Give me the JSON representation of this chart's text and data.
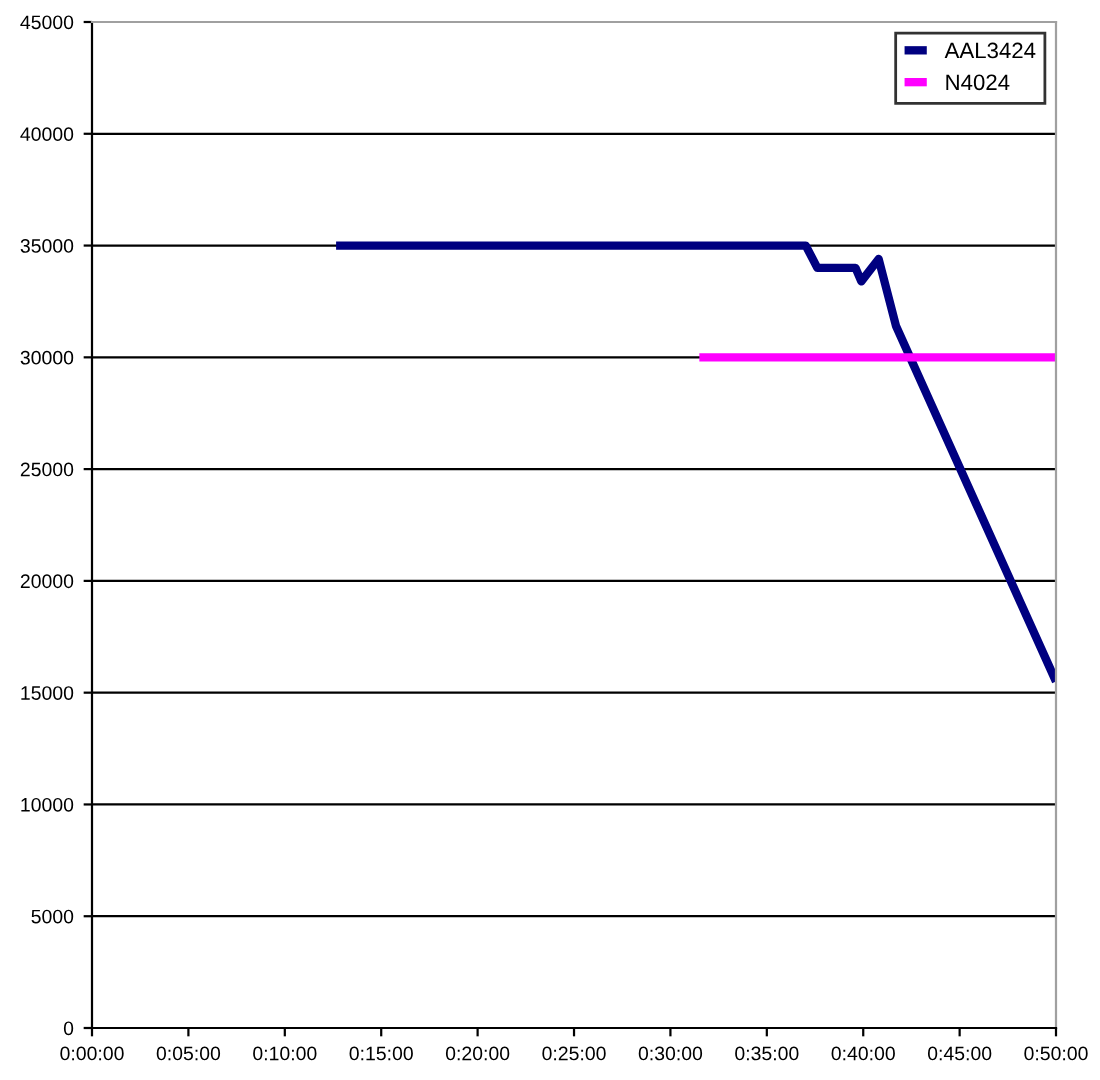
{
  "chart_data": {
    "type": "line",
    "x": [
      0.211,
      0.617,
      0.627,
      0.66,
      0.665,
      0.68,
      0.695,
      0.8333
    ],
    "series": [
      {
        "name": "AAL3424",
        "color": "#000080",
        "values": [
          35000,
          35000,
          34000,
          34000,
          33400,
          34400,
          31400,
          15500
        ]
      },
      {
        "name": "N4024",
        "color": "#ff00ff",
        "x": [
          0.525,
          0.8333
        ],
        "values": [
          30000,
          30000
        ]
      }
    ],
    "xlim": [
      0,
      0.8333
    ],
    "xticks": [
      {
        "value": 0,
        "label": "0:00:00"
      },
      {
        "value": 0.08333,
        "label": "0:05:00"
      },
      {
        "value": 0.16667,
        "label": "0:10:00"
      },
      {
        "value": 0.25,
        "label": "0:15:00"
      },
      {
        "value": 0.33333,
        "label": "0:20:00"
      },
      {
        "value": 0.41667,
        "label": "0:25:00"
      },
      {
        "value": 0.5,
        "label": "0:30:00"
      },
      {
        "value": 0.58333,
        "label": "0:35:00"
      },
      {
        "value": 0.66667,
        "label": "0:40:00"
      },
      {
        "value": 0.75,
        "label": "0:45:00"
      },
      {
        "value": 0.8333,
        "label": "0:50:00"
      }
    ],
    "ylim": [
      0,
      45000
    ],
    "yticks": [
      0,
      5000,
      10000,
      15000,
      20000,
      25000,
      30000,
      35000,
      40000,
      45000
    ],
    "grid": "y",
    "legend": "top right"
  }
}
